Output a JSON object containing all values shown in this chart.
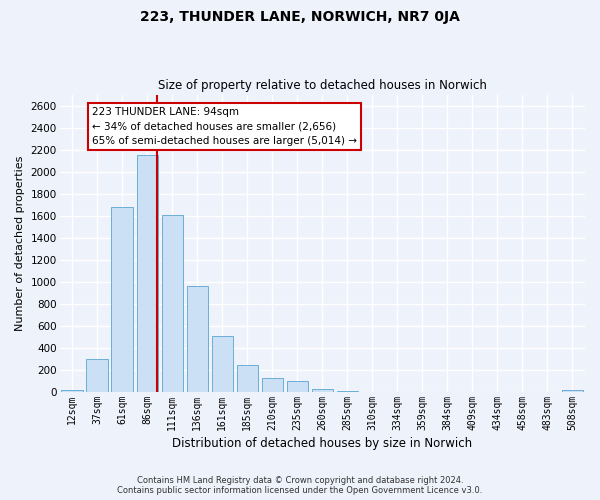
{
  "title": "223, THUNDER LANE, NORWICH, NR7 0JA",
  "subtitle": "Size of property relative to detached houses in Norwich",
  "xlabel": "Distribution of detached houses by size in Norwich",
  "ylabel": "Number of detached properties",
  "bar_labels": [
    "12sqm",
    "37sqm",
    "61sqm",
    "86sqm",
    "111sqm",
    "136sqm",
    "161sqm",
    "185sqm",
    "210sqm",
    "235sqm",
    "260sqm",
    "285sqm",
    "310sqm",
    "334sqm",
    "359sqm",
    "384sqm",
    "409sqm",
    "434sqm",
    "458sqm",
    "483sqm",
    "508sqm"
  ],
  "bar_values": [
    20,
    300,
    1680,
    2150,
    1610,
    960,
    510,
    245,
    125,
    100,
    30,
    10,
    0,
    0,
    0,
    0,
    0,
    0,
    0,
    0,
    18
  ],
  "bar_color": "#cce0f5",
  "bar_edge_color": "#6baed6",
  "ylim": [
    0,
    2700
  ],
  "yticks": [
    0,
    200,
    400,
    600,
    800,
    1000,
    1200,
    1400,
    1600,
    1800,
    2000,
    2200,
    2400,
    2600
  ],
  "property_label": "223 THUNDER LANE: 94sqm",
  "annotation_line1": "← 34% of detached houses are smaller (2,656)",
  "annotation_line2": "65% of semi-detached houses are larger (5,014) →",
  "vline_color": "#cc0000",
  "vline_x_index": 3.4,
  "footer1": "Contains HM Land Registry data © Crown copyright and database right 2024.",
  "footer2": "Contains public sector information licensed under the Open Government Licence v3.0.",
  "background_color": "#eef2fb",
  "plot_bg_color": "#eef2fb",
  "grid_color": "#ffffff"
}
